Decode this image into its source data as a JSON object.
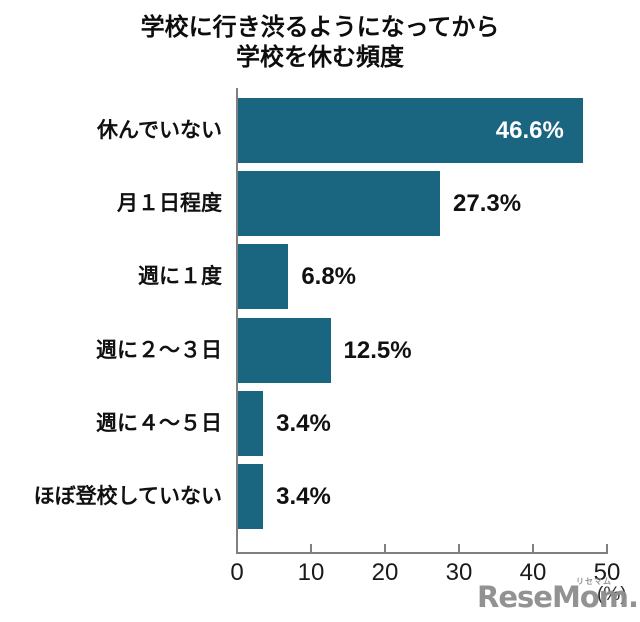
{
  "chart_data": {
    "type": "bar",
    "orientation": "horizontal",
    "title": "学校に行き渋るようになってから 学校を休む頻度",
    "title_lines": [
      "学校に行き渋るようになってから",
      "学校を休む頻度"
    ],
    "categories": [
      "休んでいない",
      "月１日程度",
      "週に１度",
      "週に２〜３日",
      "週に４〜５日",
      "ほぼ登校していない"
    ],
    "values": [
      46.6,
      27.3,
      6.8,
      12.5,
      3.4,
      3.4
    ],
    "value_labels": [
      "46.6%",
      "27.3%",
      "6.8%",
      "12.5%",
      "3.4%",
      "3.4%"
    ],
    "value_label_inside": [
      true,
      false,
      false,
      false,
      false,
      false
    ],
    "xlabel": "(%)",
    "ylabel": "",
    "xlim": [
      0,
      50
    ],
    "x_ticks": [
      0,
      10,
      20,
      30,
      40,
      50
    ],
    "x_tick_labels": [
      "0",
      "10",
      "20",
      "30",
      "40",
      "50"
    ],
    "unit_label": "(%)",
    "grid": false,
    "legend": false,
    "colors": {
      "bar": "#1A6580",
      "axis": "#7f7f7f",
      "text": "#111111",
      "value_inside": "#ffffff",
      "tick_label": "#1a1a1a"
    }
  },
  "watermark": {
    "text": "ReseMom.",
    "subtext": "リセマム",
    "color": "#8d8d8d"
  }
}
